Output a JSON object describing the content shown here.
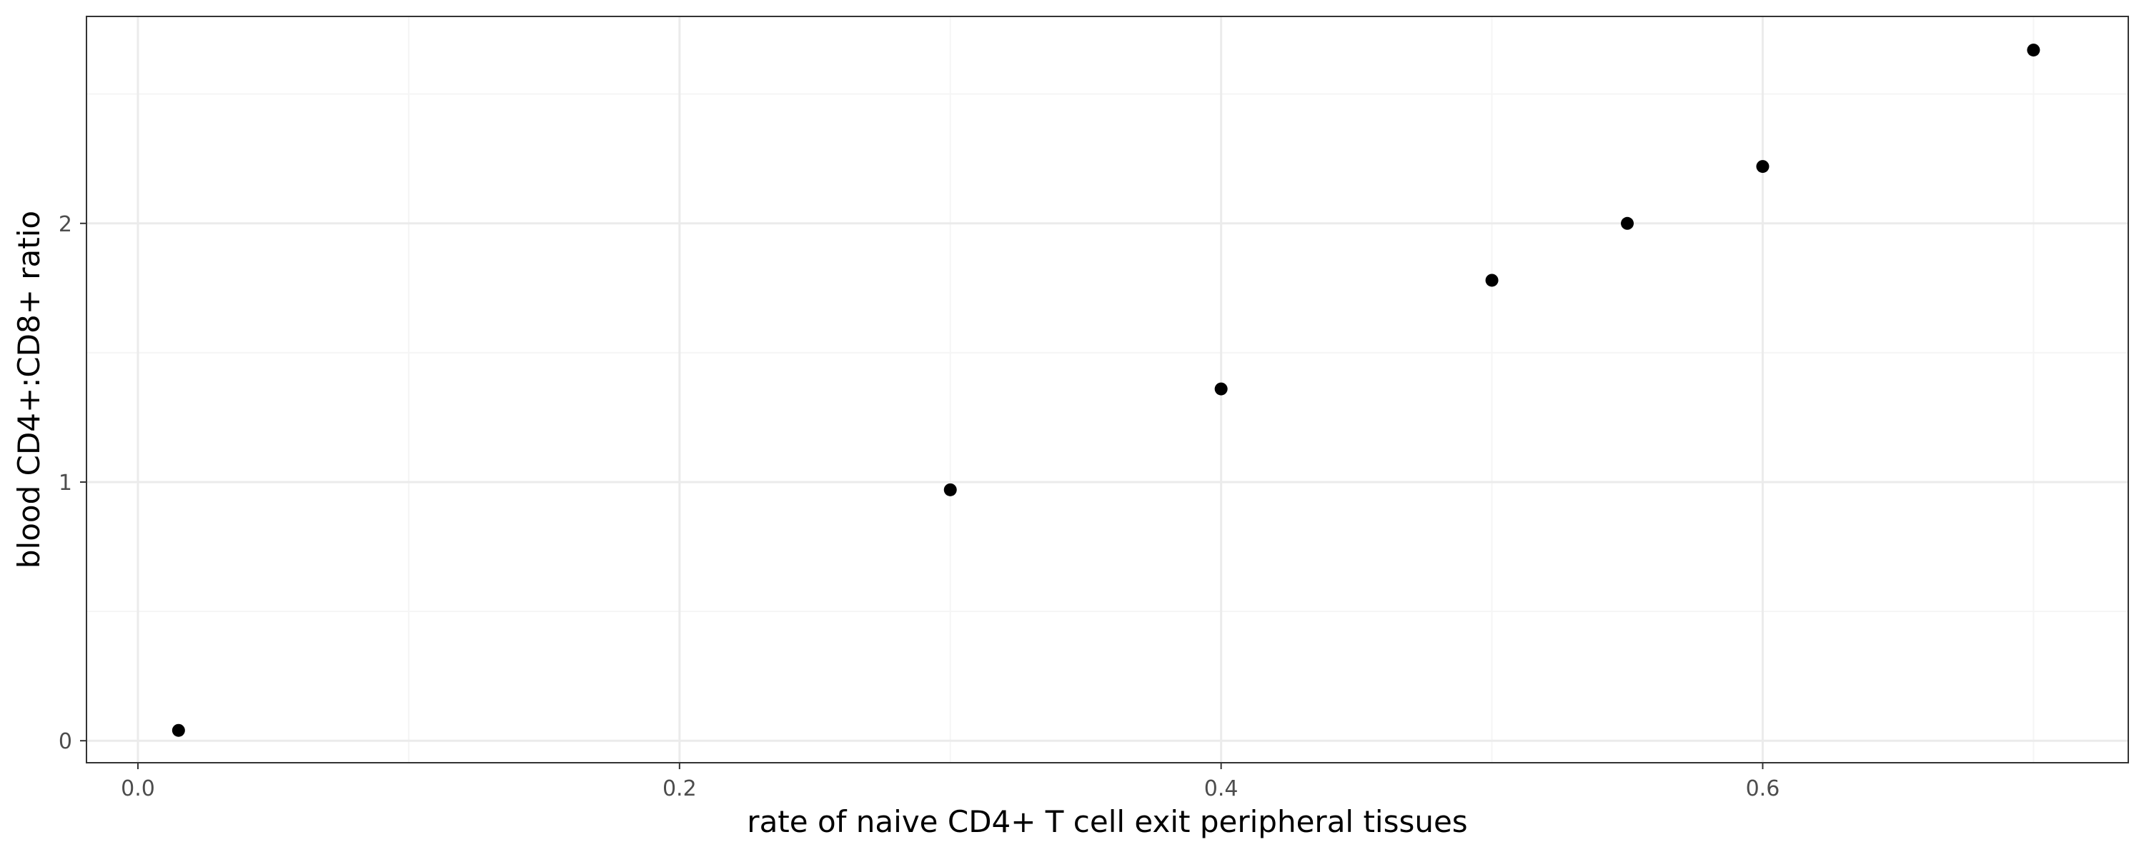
{
  "chart_data": {
    "type": "scatter",
    "title": "",
    "xlabel": "rate of naive CD4+ T cell exit peripheral tissues",
    "ylabel": "blood CD4+:CD8+ ratio",
    "xlim": [
      -0.019,
      0.735
    ],
    "ylim": [
      -0.085,
      2.8
    ],
    "x_ticks": [
      0.0,
      0.2,
      0.4,
      0.6
    ],
    "x_tick_labels": [
      "0.0",
      "0.2",
      "0.4",
      "0.6"
    ],
    "x_minor_ticks": [
      0.1,
      0.3,
      0.5,
      0.7
    ],
    "y_ticks": [
      0,
      1,
      2
    ],
    "y_tick_labels": [
      "0",
      "1",
      "2"
    ],
    "y_minor_ticks": [
      0.5,
      1.5,
      2.5
    ],
    "grid": true,
    "legend": "none",
    "points": [
      {
        "x": 0.015,
        "y": 0.04
      },
      {
        "x": 0.3,
        "y": 0.97
      },
      {
        "x": 0.4,
        "y": 1.36
      },
      {
        "x": 0.5,
        "y": 1.78
      },
      {
        "x": 0.55,
        "y": 2.0
      },
      {
        "x": 0.6,
        "y": 2.22
      },
      {
        "x": 0.7,
        "y": 2.67
      }
    ],
    "colors": {
      "point": "#000000",
      "grid_major": "#ebebeb",
      "grid_minor": "#f5f5f5",
      "panel_border": "#333333",
      "tick_label": "#4d4d4d"
    }
  }
}
